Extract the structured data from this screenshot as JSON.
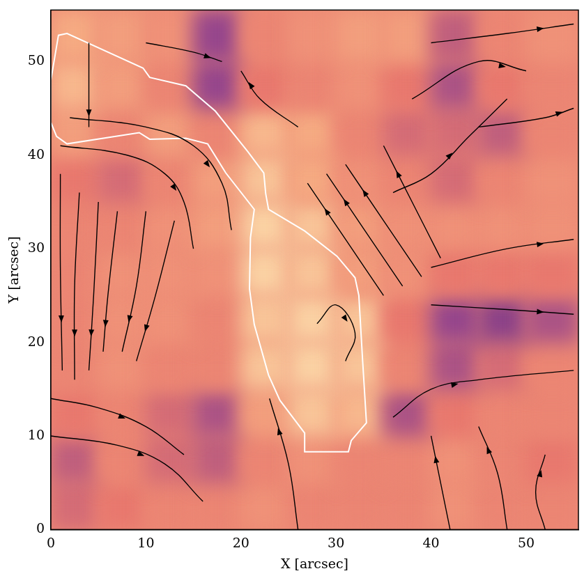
{
  "chart_data": {
    "type": "streamline",
    "x_label": "X [arcsec]",
    "y_label": "Y [arcsec]",
    "xlim": [
      0,
      55.5
    ],
    "ylim": [
      0,
      55.5
    ],
    "xticks": [
      0,
      10,
      20,
      30,
      40,
      50
    ],
    "yticks": [
      0,
      10,
      20,
      30,
      40,
      50
    ],
    "grid": false,
    "intensity": {
      "x_edges": [
        0,
        5,
        10,
        15,
        20,
        25,
        30,
        35,
        40,
        45,
        50,
        55.5
      ],
      "y_edges": [
        0,
        5,
        10,
        15,
        20,
        25,
        30,
        35,
        40,
        45,
        50,
        55.5
      ],
      "values": [
        [
          0.5,
          0.55,
          0.6,
          0.6,
          0.65,
          0.6,
          0.6,
          0.6,
          0.65,
          0.6,
          0.6
        ],
        [
          0.45,
          0.6,
          0.5,
          0.45,
          0.6,
          0.65,
          0.6,
          0.6,
          0.65,
          0.6,
          0.55
        ],
        [
          0.55,
          0.6,
          0.5,
          0.4,
          0.7,
          0.85,
          0.8,
          0.4,
          0.55,
          0.6,
          0.6
        ],
        [
          0.6,
          0.65,
          0.6,
          0.6,
          0.85,
          0.9,
          0.85,
          0.6,
          0.4,
          0.5,
          0.6
        ],
        [
          0.6,
          0.65,
          0.65,
          0.6,
          0.85,
          0.9,
          0.85,
          0.55,
          0.35,
          0.3,
          0.4
        ],
        [
          0.6,
          0.65,
          0.65,
          0.65,
          0.9,
          0.85,
          0.7,
          0.65,
          0.55,
          0.55,
          0.55
        ],
        [
          0.6,
          0.6,
          0.65,
          0.7,
          0.9,
          0.85,
          0.7,
          0.65,
          0.65,
          0.65,
          0.65
        ],
        [
          0.55,
          0.5,
          0.6,
          0.7,
          0.85,
          0.75,
          0.65,
          0.6,
          0.5,
          0.6,
          0.65
        ],
        [
          0.7,
          0.6,
          0.7,
          0.6,
          0.8,
          0.75,
          0.6,
          0.5,
          0.5,
          0.45,
          0.6
        ],
        [
          0.8,
          0.7,
          0.6,
          0.35,
          0.55,
          0.6,
          0.65,
          0.55,
          0.4,
          0.55,
          0.6
        ],
        [
          0.75,
          0.7,
          0.65,
          0.35,
          0.6,
          0.65,
          0.7,
          0.7,
          0.45,
          0.6,
          0.65
        ]
      ]
    },
    "contour": {
      "color": "#ffffff",
      "x": [
        0,
        0.8,
        1.7,
        9.7,
        10.4,
        14.2,
        17.3,
        20.7,
        22.4,
        22.6,
        22.9,
        26.7,
        30.1,
        32.0,
        32.4,
        32.8,
        33.2,
        31.6,
        31.3,
        26.7,
        26.7,
        24.1,
        22.9,
        21.4,
        20.9,
        21.0,
        21.4,
        18.4,
        16.5,
        14.2,
        10.4,
        9.3,
        1.7,
        0.6,
        0
      ],
      "y": [
        48.0,
        52.8,
        53.0,
        49.3,
        48.3,
        47.4,
        44.7,
        40.4,
        38.1,
        35.9,
        34.2,
        31.9,
        29.2,
        26.9,
        25.0,
        18.0,
        11.4,
        9.5,
        8.3,
        8.3,
        10.3,
        13.8,
        16.5,
        21.9,
        25.7,
        31.2,
        34.2,
        38.1,
        41.2,
        41.8,
        41.7,
        42.4,
        41.2,
        42.0,
        43.5
      ]
    },
    "streamlines": {
      "color": "#000000",
      "lines": [
        {
          "x": [
            1,
            1,
            1.2
          ],
          "y": [
            38,
            28,
            17
          ]
        },
        {
          "x": [
            3,
            2.5,
            2.5
          ],
          "y": [
            36,
            26,
            16
          ]
        },
        {
          "x": [
            5,
            4.5,
            4
          ],
          "y": [
            35,
            25,
            17
          ]
        },
        {
          "x": [
            7,
            6,
            5.5
          ],
          "y": [
            34,
            25,
            19
          ]
        },
        {
          "x": [
            10,
            9,
            7.5
          ],
          "y": [
            34,
            26,
            19
          ]
        },
        {
          "x": [
            13,
            11,
            9
          ],
          "y": [
            33,
            25,
            18
          ]
        },
        {
          "x": [
            1,
            8,
            12,
            14,
            15
          ],
          "y": [
            41,
            40,
            38,
            35,
            30
          ]
        },
        {
          "x": [
            2,
            10,
            15,
            18,
            19
          ],
          "y": [
            44,
            43,
            41,
            37,
            32
          ]
        },
        {
          "x": [
            35,
            31,
            27
          ],
          "y": [
            25,
            31,
            37
          ]
        },
        {
          "x": [
            37,
            33,
            29
          ],
          "y": [
            26,
            32,
            38
          ]
        },
        {
          "x": [
            39,
            35,
            31
          ],
          "y": [
            27,
            33,
            39
          ]
        },
        {
          "x": [
            41,
            38,
            35
          ],
          "y": [
            29,
            35,
            41
          ]
        },
        {
          "x": [
            0,
            5,
            10,
            14
          ],
          "y": [
            14,
            13,
            11,
            8
          ]
        },
        {
          "x": [
            0,
            7,
            12,
            16
          ],
          "y": [
            10,
            9,
            7,
            3
          ]
        },
        {
          "x": [
            40,
            48,
            55
          ],
          "y": [
            24,
            23.5,
            23
          ]
        },
        {
          "x": [
            40,
            48,
            55
          ],
          "y": [
            28,
            30,
            31
          ]
        },
        {
          "x": [
            40,
            48,
            55
          ],
          "y": [
            52,
            53,
            54
          ]
        },
        {
          "x": [
            38,
            45,
            50
          ],
          "y": [
            46,
            50,
            49
          ]
        },
        {
          "x": [
            42,
            41,
            40
          ],
          "y": [
            0,
            5,
            10
          ]
        },
        {
          "x": [
            48,
            47,
            45
          ],
          "y": [
            0,
            6,
            11
          ]
        },
        {
          "x": [
            52,
            51,
            52
          ],
          "y": [
            0,
            4,
            8
          ]
        },
        {
          "x": [
            10,
            15,
            18
          ],
          "y": [
            52,
            51,
            50
          ]
        },
        {
          "x": [
            26,
            22,
            20
          ],
          "y": [
            43,
            46,
            49
          ]
        },
        {
          "x": [
            4,
            4,
            4
          ],
          "y": [
            52,
            46,
            43
          ]
        },
        {
          "x": [
            26,
            25,
            23
          ],
          "y": [
            0,
            7,
            14
          ]
        },
        {
          "x": [
            28,
            30,
            32,
            31
          ],
          "y": [
            22,
            24,
            21,
            18
          ]
        },
        {
          "x": [
            36,
            40,
            44,
            48
          ],
          "y": [
            36,
            38,
            42,
            46
          ]
        },
        {
          "x": [
            45,
            52,
            55
          ],
          "y": [
            43,
            44,
            45
          ]
        },
        {
          "x": [
            36,
            40,
            45,
            55
          ],
          "y": [
            12,
            15,
            16,
            17
          ]
        }
      ]
    }
  }
}
